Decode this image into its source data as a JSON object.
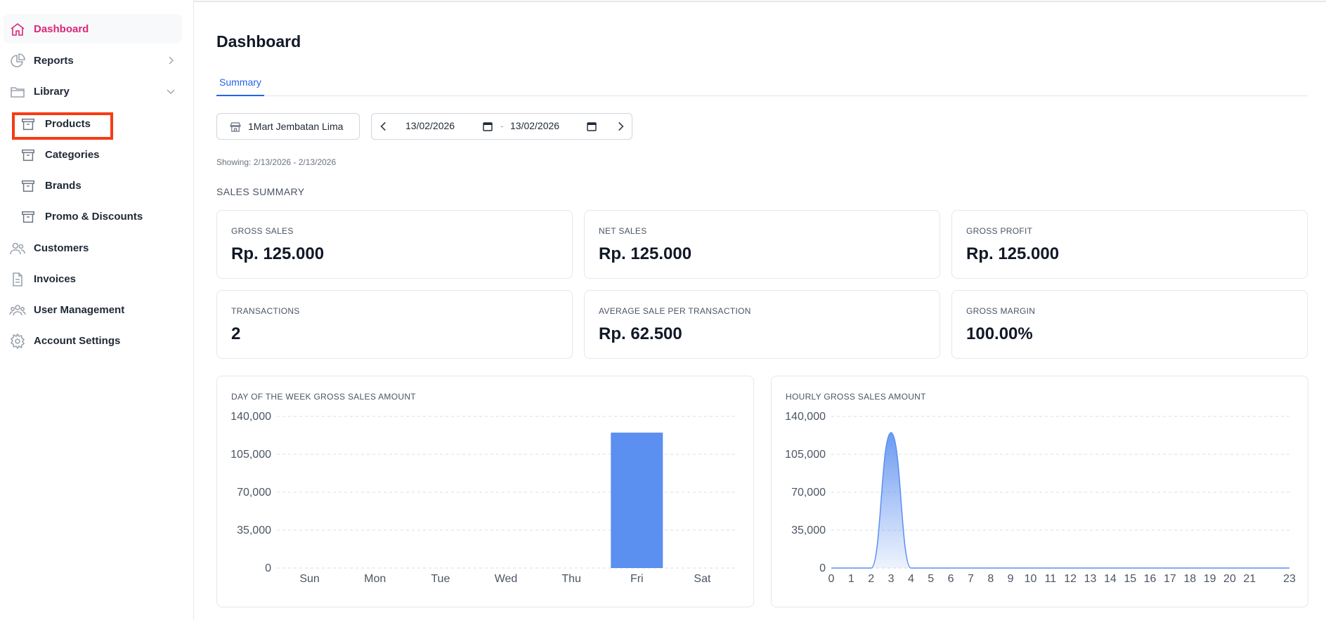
{
  "sidebar": {
    "items": [
      {
        "label": "Dashboard"
      },
      {
        "label": "Reports"
      },
      {
        "label": "Library"
      },
      {
        "label": "Customers"
      },
      {
        "label": "Invoices"
      },
      {
        "label": "User Management"
      },
      {
        "label": "Account Settings"
      }
    ],
    "library_items": [
      {
        "label": "Products"
      },
      {
        "label": "Categories"
      },
      {
        "label": "Brands"
      },
      {
        "label": "Promo & Discounts"
      }
    ],
    "accent_color": "#db2777"
  },
  "page": {
    "title": "Dashboard",
    "tabs": [
      {
        "label": "Summary"
      }
    ]
  },
  "filters": {
    "outlet": "1Mart Jembatan Lima",
    "date_from": "13/02/2026",
    "date_separator": "-",
    "date_to": "13/02/2026",
    "showing": "Showing: 2/13/2026 - 2/13/2026"
  },
  "summary": {
    "title": "SALES SUMMARY",
    "cards": [
      {
        "label": "GROSS SALES",
        "value": "Rp. 125.000"
      },
      {
        "label": "NET SALES",
        "value": "Rp. 125.000"
      },
      {
        "label": "GROSS PROFIT",
        "value": "Rp. 125.000"
      },
      {
        "label": "TRANSACTIONS",
        "value": "2"
      },
      {
        "label": "AVERAGE SALE PER TRANSACTION",
        "value": "Rp. 62.500"
      },
      {
        "label": "GROSS MARGIN",
        "value": "100.00%"
      }
    ]
  },
  "chart_data": [
    {
      "type": "bar",
      "title": "DAY OF THE WEEK GROSS SALES AMOUNT",
      "categories": [
        "Sun",
        "Mon",
        "Tue",
        "Wed",
        "Thu",
        "Fri",
        "Sat"
      ],
      "values": [
        0,
        0,
        0,
        0,
        0,
        125000,
        0
      ],
      "ylim": [
        0,
        140000
      ],
      "yticks": [
        "0",
        "35,000",
        "70,000",
        "105,000",
        "140,000"
      ],
      "grid": true,
      "color": "#5b8ff0"
    },
    {
      "type": "area",
      "title": "HOURLY GROSS SALES AMOUNT",
      "x": [
        0,
        1,
        2,
        3,
        4,
        5,
        6,
        7,
        8,
        9,
        10,
        11,
        12,
        13,
        14,
        15,
        16,
        17,
        18,
        19,
        20,
        21,
        22,
        23
      ],
      "xticks": [
        "0",
        "1",
        "2",
        "3",
        "4",
        "5",
        "6",
        "7",
        "8",
        "9",
        "10",
        "11",
        "12",
        "13",
        "14",
        "15",
        "16",
        "17",
        "18",
        "19",
        "20",
        "21",
        "23"
      ],
      "values": [
        0,
        0,
        0,
        125000,
        0,
        0,
        0,
        0,
        0,
        0,
        0,
        0,
        0,
        0,
        0,
        0,
        0,
        0,
        0,
        0,
        0,
        0,
        0,
        0
      ],
      "ylim": [
        0,
        140000
      ],
      "yticks": [
        "0",
        "35,000",
        "70,000",
        "105,000",
        "140,000"
      ],
      "grid": true,
      "color": "#5b8ff0"
    }
  ]
}
